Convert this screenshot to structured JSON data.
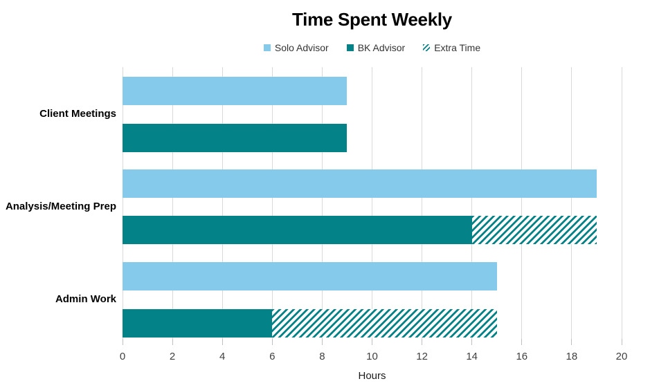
{
  "title": "Time Spent Weekly",
  "legend": {
    "items": [
      {
        "label": "Solo Advisor",
        "swatch": "solid-light-blue"
      },
      {
        "label": "BK Advisor",
        "swatch": "solid-teal"
      },
      {
        "label": "Extra Time",
        "swatch": "teal-diagonal-hatch"
      }
    ]
  },
  "colors": {
    "solo_advisor": "#85CAEA",
    "bk_advisor": "#038387",
    "gridline": "#D9D9D9",
    "axis_text": "#404040"
  },
  "chart_data": {
    "type": "bar",
    "orientation": "horizontal",
    "title": "Time Spent Weekly",
    "categories": [
      "Client Meetings",
      "Analysis/Meeting Prep",
      "Admin Work"
    ],
    "series": [
      {
        "name": "Solo Advisor",
        "style": "solid",
        "color": "#85CAEA",
        "values": [
          9,
          19,
          15
        ]
      },
      {
        "name": "BK Advisor",
        "style": "solid",
        "color": "#038387",
        "values": [
          9,
          14,
          6
        ]
      },
      {
        "name": "Extra Time",
        "style": "hatch",
        "color": "#038387",
        "extends_series": "BK Advisor",
        "values": [
          0,
          5,
          9
        ]
      }
    ],
    "xlabel": "Hours",
    "ylabel": "",
    "xlim": [
      0,
      20
    ],
    "xticks": [
      0,
      2,
      4,
      6,
      8,
      10,
      12,
      14,
      16,
      18,
      20
    ],
    "grid": true,
    "legend_position": "top"
  }
}
